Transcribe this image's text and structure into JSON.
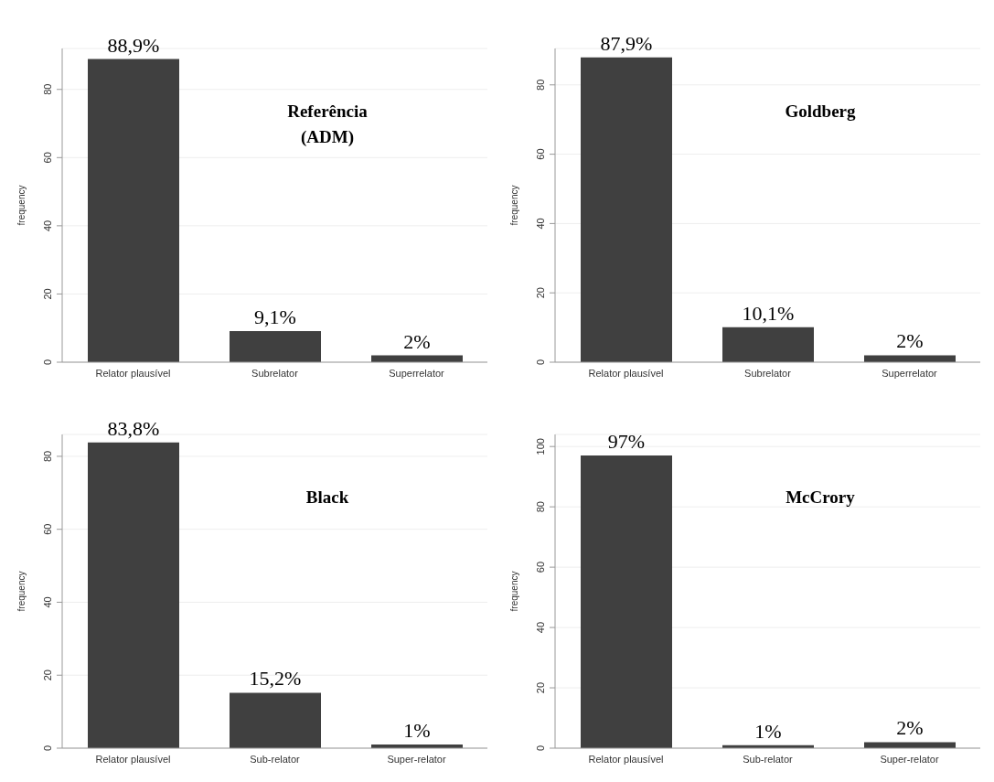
{
  "chart_data": [
    {
      "type": "bar",
      "title": "Referência\n(ADM)",
      "ylabel": "frequency",
      "categories": [
        "Relator plausível",
        "Subrelator",
        "Superrelator"
      ],
      "values": [
        88.9,
        9.1,
        2
      ],
      "value_labels": [
        "88,9%",
        "9,1%",
        "2%"
      ],
      "color": "#404040",
      "ylim": [
        0,
        92
      ],
      "yticks": [
        0,
        20,
        40,
        60,
        80
      ],
      "grid": "y"
    },
    {
      "type": "bar",
      "title": "Goldberg",
      "ylabel": "frequency",
      "categories": [
        "Relator plausível",
        "Subrelator",
        "Superrelator"
      ],
      "values": [
        87.9,
        10.1,
        2
      ],
      "value_labels": [
        "87,9%",
        "10,1%",
        "2%"
      ],
      "color": "#404040",
      "ylim": [
        0,
        90.5
      ],
      "yticks": [
        0,
        20,
        40,
        60,
        80
      ],
      "grid": "y"
    },
    {
      "type": "bar",
      "title": "Black",
      "ylabel": "frequency",
      "categories": [
        "Relator plausível",
        "Sub-relator",
        "Super-relator"
      ],
      "values": [
        83.8,
        15.2,
        1
      ],
      "value_labels": [
        "83,8%",
        "15,2%",
        "1%"
      ],
      "color": "#404040",
      "ylim": [
        0,
        86
      ],
      "yticks": [
        0,
        20,
        40,
        60,
        80
      ],
      "grid": "y"
    },
    {
      "type": "bar",
      "title": "McCrory",
      "ylabel": "frequency",
      "categories": [
        "Relator plausível",
        "Sub-relator",
        "Super-relator"
      ],
      "values": [
        97,
        1,
        2
      ],
      "value_labels": [
        "97%",
        "1%",
        "2%"
      ],
      "color": "#404040",
      "ylim": [
        0,
        104
      ],
      "yticks": [
        0,
        20,
        40,
        60,
        80,
        100
      ],
      "grid": "y"
    }
  ]
}
